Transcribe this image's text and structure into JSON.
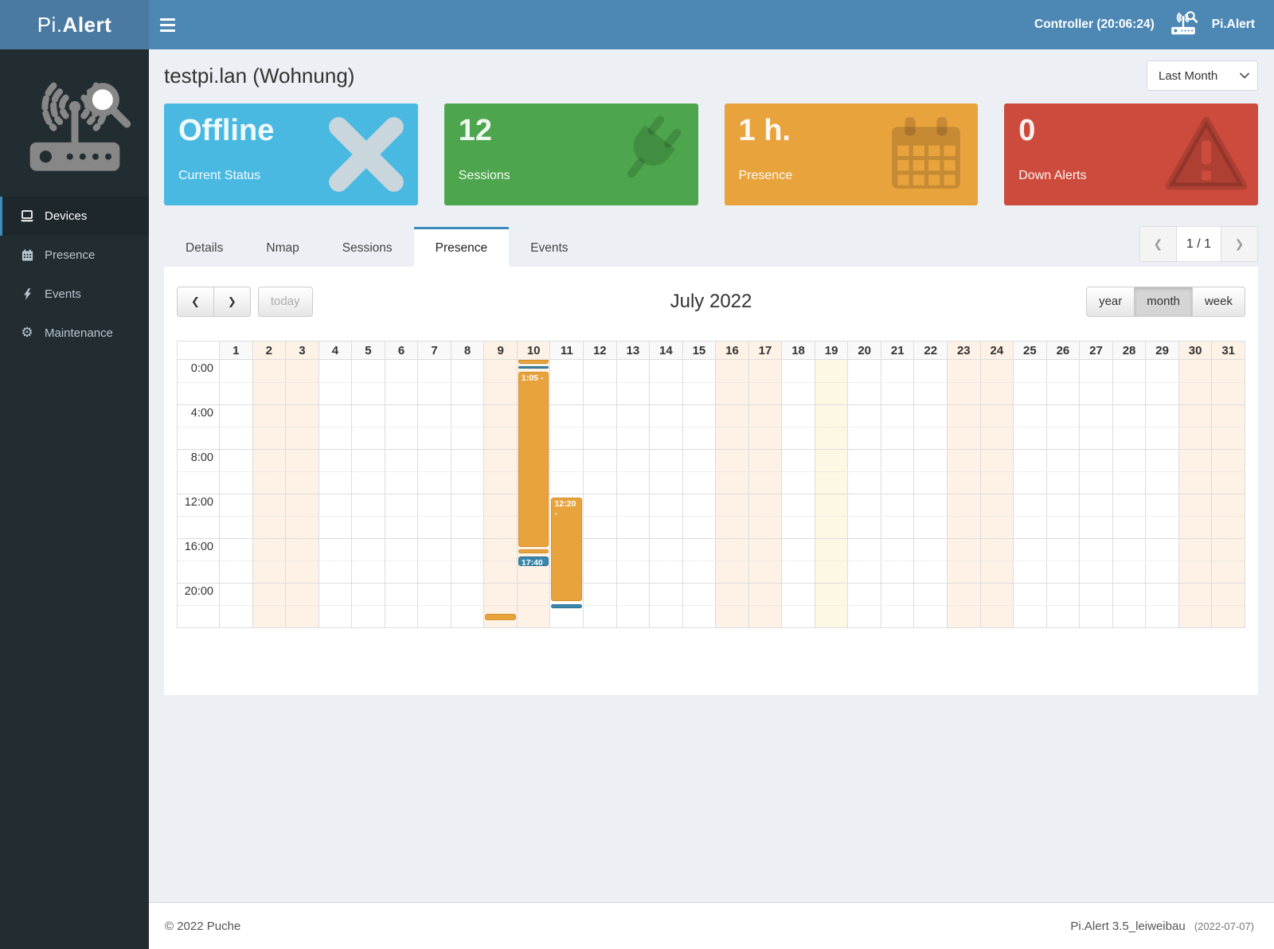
{
  "topbar": {
    "brand_prefix": "Pi.",
    "brand_suffix": "Alert",
    "controller_label": "Controller (20:06:24)",
    "app_label": "Pi.Alert"
  },
  "sidebar": {
    "items": [
      {
        "id": "devices",
        "label": "Devices",
        "icon": "laptop-icon",
        "active": true
      },
      {
        "id": "presence",
        "label": "Presence",
        "icon": "calendar-icon",
        "active": false
      },
      {
        "id": "events",
        "label": "Events",
        "icon": "bolt-icon",
        "active": false
      },
      {
        "id": "maintenance",
        "label": "Maintenance",
        "icon": "gear-icon",
        "active": false
      }
    ]
  },
  "page": {
    "title": "testpi.lan (Wohnung)",
    "period_select_value": "Last Month"
  },
  "cards": [
    {
      "id": "status",
      "big": "Offline",
      "label": "Current Status",
      "icon": "x-icon",
      "bg": "#4ab9e2",
      "icon_color": "#c9d6dc"
    },
    {
      "id": "sessions",
      "big": "12",
      "label": "Sessions",
      "icon": "plug-icon",
      "bg": "#4da64d"
    },
    {
      "id": "presence",
      "big": "1 h.",
      "label": "Presence",
      "icon": "calendar-big-icon",
      "bg": "#e8a33d"
    },
    {
      "id": "down-alerts",
      "big": "0",
      "label": "Down Alerts",
      "icon": "warning-icon",
      "bg": "#cd4b3c"
    }
  ],
  "tabs": {
    "items": [
      {
        "id": "details",
        "label": "Details",
        "active": false
      },
      {
        "id": "nmap",
        "label": "Nmap",
        "active": false
      },
      {
        "id": "sessions",
        "label": "Sessions",
        "active": false
      },
      {
        "id": "presence",
        "label": "Presence",
        "active": true
      },
      {
        "id": "events",
        "label": "Events",
        "active": false
      }
    ]
  },
  "pagination": {
    "page_label": "1 / 1"
  },
  "calendar": {
    "title": "July 2022",
    "today_label": "today",
    "views": [
      "year",
      "month",
      "week"
    ],
    "active_view": "month",
    "days": 31,
    "weekend_days": [
      2,
      3,
      9,
      10,
      16,
      17,
      23,
      24,
      30,
      31
    ],
    "today_day": 19,
    "hours_per_day": 24,
    "time_labels": [
      "0:00",
      "4:00",
      "8:00",
      "12:00",
      "16:00",
      "20:00"
    ],
    "events": [
      {
        "day": 9,
        "color": "orange",
        "start": 22.8,
        "end": 23.45,
        "label": ""
      },
      {
        "day": 10,
        "color": "orange",
        "start": 0.0,
        "end": 0.45,
        "label": "",
        "flat_top": true
      },
      {
        "day": 10,
        "color": "blue",
        "start": 0.55,
        "end": 0.8,
        "label": ""
      },
      {
        "day": 10,
        "color": "orange",
        "start": 1.083,
        "end": 16.85,
        "label": "1:05 -"
      },
      {
        "day": 10,
        "color": "orange",
        "start": 17.0,
        "end": 17.45,
        "label": ""
      },
      {
        "day": 10,
        "color": "blue",
        "start": 17.67,
        "end": 18.6,
        "label": "17:40"
      },
      {
        "day": 11,
        "color": "orange",
        "start": 12.33,
        "end": 21.75,
        "label": "12:20 -"
      },
      {
        "day": 11,
        "color": "blue",
        "start": 21.9,
        "end": 22.35,
        "label": ""
      }
    ]
  },
  "footer": {
    "left": "© 2022 Puche",
    "right_version": "Pi.Alert  3.5_leiweibau",
    "right_date": "(2022-07-07)"
  }
}
